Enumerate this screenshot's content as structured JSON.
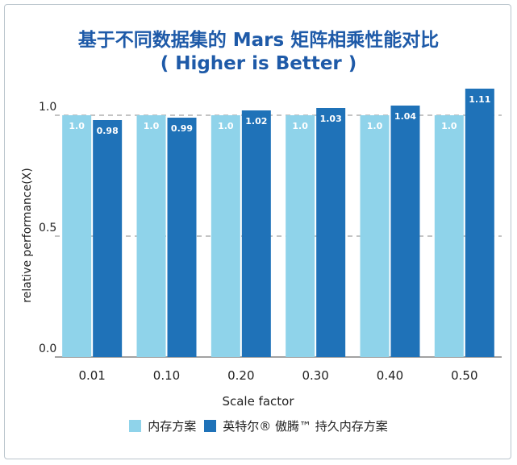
{
  "chart_data": {
    "type": "bar",
    "title": "基于不同数据集的 Mars 矩阵相乘性能对比",
    "subtitle": "( Higher is Better )",
    "xlabel": "Scale factor",
    "ylabel": "relative performance(X)",
    "ylim": [
      0,
      1.15
    ],
    "yticks": [
      {
        "value": 0.0,
        "label": "0.0"
      },
      {
        "value": 0.5,
        "label": "0.5"
      },
      {
        "value": 1.0,
        "label": "1.0"
      }
    ],
    "grid": true,
    "legend_position": "bottom",
    "categories": [
      "0.01",
      "0.10",
      "0.20",
      "0.30",
      "0.40",
      "0.50"
    ],
    "series": [
      {
        "name": "内存方案",
        "color": "#8fd3ea",
        "values": [
          1.0,
          1.0,
          1.0,
          1.0,
          1.0,
          1.0
        ],
        "labels": [
          "1.0",
          "1.0",
          "1.0",
          "1.0",
          "1.0",
          "1.0"
        ]
      },
      {
        "name": "英特尔® 傲腾™ 持久内存方案",
        "color": "#1f72b8",
        "values": [
          0.98,
          0.99,
          1.02,
          1.03,
          1.04,
          1.11
        ],
        "labels": [
          "0.98",
          "0.99",
          "1.02",
          "1.03",
          "1.04",
          "1.11"
        ]
      }
    ]
  }
}
